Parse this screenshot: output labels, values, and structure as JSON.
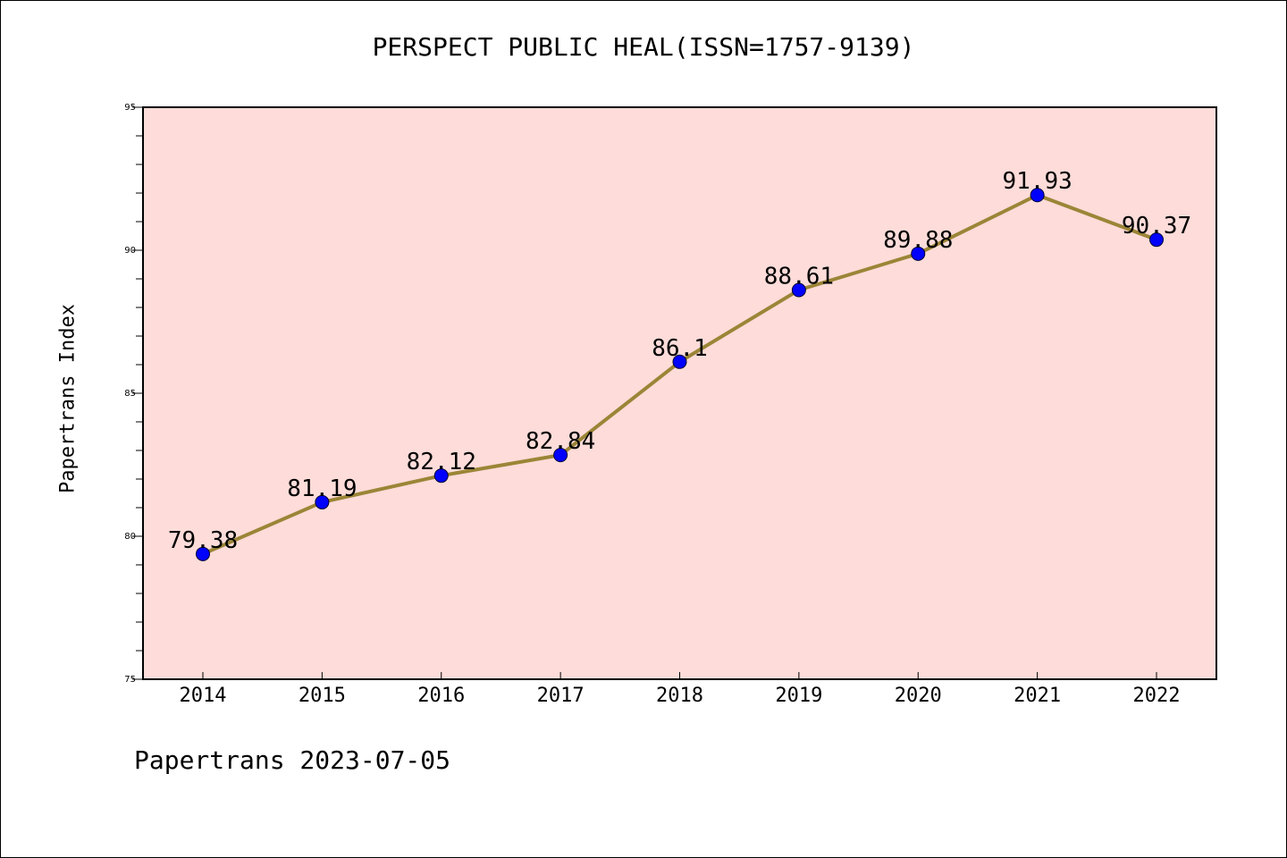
{
  "title": "PERSPECT PUBLIC HEAL(ISSN=1757-9139)",
  "footer": "Papertrans 2023-07-05",
  "colors": {
    "plot_background": "#fddcd9",
    "line": "#9b8537",
    "marker": "#0000ff",
    "axis": "#000000"
  },
  "chart_data": {
    "type": "line",
    "title": "PERSPECT PUBLIC HEAL(ISSN=1757-9139)",
    "xlabel": "",
    "ylabel": "Papertrans Index",
    "categories": [
      "2014",
      "2015",
      "2016",
      "2017",
      "2018",
      "2019",
      "2020",
      "2021",
      "2022"
    ],
    "series": [
      {
        "values": [
          79.38,
          81.19,
          82.12,
          82.84,
          86.1,
          88.61,
          89.88,
          91.93,
          90.37
        ],
        "labels": [
          "79.38",
          "81.19",
          "82.12",
          "82.84",
          "86.1",
          "88.61",
          "89.88",
          "91.93",
          "90.37"
        ]
      }
    ],
    "ylim": [
      75,
      95
    ],
    "yticks": [
      "75",
      "80",
      "85",
      "90",
      "95"
    ],
    "grid": false,
    "legend": "none"
  }
}
